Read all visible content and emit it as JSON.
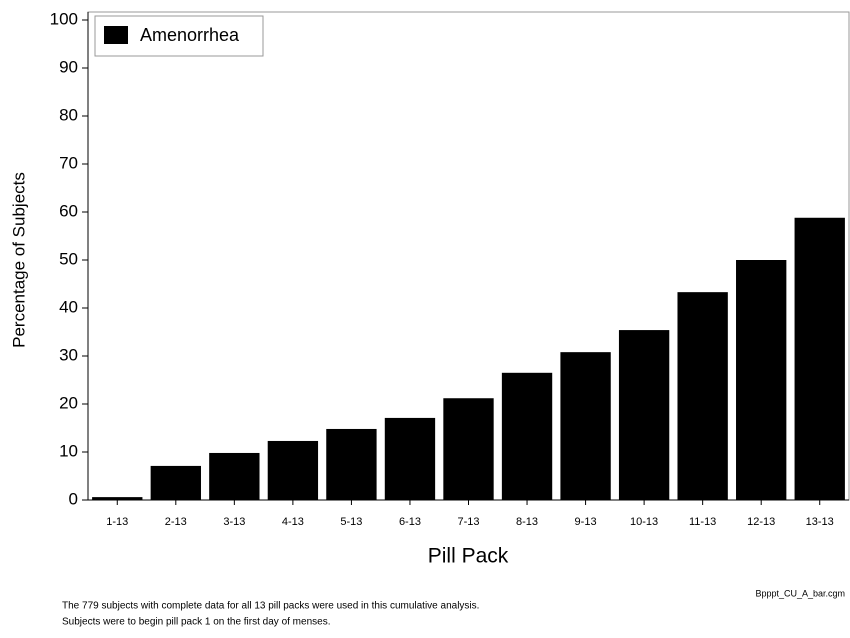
{
  "chart_data": {
    "type": "bar",
    "categories": [
      "1-13",
      "2-13",
      "3-13",
      "4-13",
      "5-13",
      "6-13",
      "7-13",
      "8-13",
      "9-13",
      "10-13",
      "11-13",
      "12-13",
      "13-13"
    ],
    "series": [
      {
        "name": "Amenorrhea",
        "color": "#000000",
        "values": [
          0.6,
          7.1,
          9.8,
          12.3,
          14.8,
          17.1,
          21.2,
          26.5,
          30.8,
          35.4,
          43.3,
          50,
          58.8
        ]
      }
    ],
    "ylim": [
      0,
      100
    ],
    "yticks": [
      0,
      10,
      20,
      30,
      40,
      50,
      60,
      70,
      80,
      90,
      100
    ],
    "x_label": "Pill Pack",
    "y_label": "Percentage of Subjects",
    "legend": "top-left",
    "file_label": "Bpppt_CU_A_bar.cgm",
    "footnotes": [
      "The 779 subjects with complete data for all 13 pill packs were used in this cumulative analysis.",
      "Subjects were to begin pill pack 1 on the first day of menses."
    ]
  }
}
